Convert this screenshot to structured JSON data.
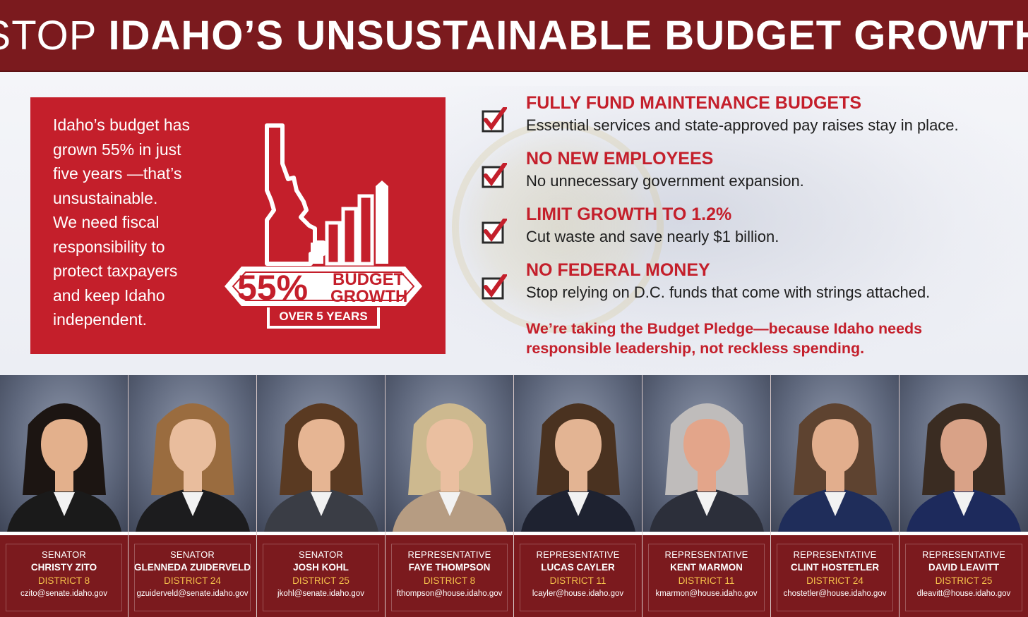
{
  "header": {
    "title_light": "STOP",
    "title_bold": "IDAHO’S UNSUSTAINABLE BUDGET GROWTH"
  },
  "intro": {
    "lines": [
      "Idaho’s budget has",
      "grown 55% in just",
      "five years —that’s",
      "unsustainable.",
      "We need fiscal",
      "responsibility to",
      "protect taxpayers",
      "and keep Idaho",
      "independent."
    ]
  },
  "graphic": {
    "percent": "55%",
    "label_top": "BUDGET",
    "label_bottom": "GROWTH",
    "period": "OVER 5 YEARS"
  },
  "pledges": [
    {
      "title": "FULLY FUND MAINTENANCE BUDGETS",
      "desc": "Essential services and state-approved pay raises stay in place."
    },
    {
      "title": "NO NEW EMPLOYEES",
      "desc": "No unnecessary government expansion."
    },
    {
      "title": "LIMIT GROWTH TO 1.2%",
      "desc": "Cut waste and save nearly $1 billion."
    },
    {
      "title": "NO FEDERAL MONEY",
      "desc": "Stop relying on D.C. funds that come with strings attached."
    }
  ],
  "statement": {
    "line1": "We’re taking the Budget Pledge—because Idaho needs",
    "line2": "responsible leadership, not reckless spending."
  },
  "colors": {
    "brand_red": "#c41f2b",
    "banner_maroon": "#7b1a1e",
    "district_gold": "#f5c04a"
  },
  "legislators": [
    {
      "role": "SENATOR",
      "name": "CHRISTY ZITO",
      "district": "DISTRICT 8",
      "email": "czito@senate.idaho.gov",
      "hair": "#1c1512",
      "skin": "#e3b08c",
      "suit": "#1a1a1a"
    },
    {
      "role": "SENATOR",
      "name": "GLENNEDA ZUIDERVELD",
      "district": "DISTRICT 24",
      "email": "gzuiderveld@senate.idaho.gov",
      "hair": "#9a6c3f",
      "skin": "#e9bd9d",
      "suit": "#1c1c1e"
    },
    {
      "role": "SENATOR",
      "name": "JOSH KOHL",
      "district": "DISTRICT 25",
      "email": "jkohl@senate.idaho.gov",
      "hair": "#5a3a22",
      "skin": "#e6b593",
      "suit": "#3a3d45"
    },
    {
      "role": "REPRESENTATIVE",
      "name": "FAYE THOMPSON",
      "district": "DISTRICT 8",
      "email": "fthompson@house.idaho.gov",
      "hair": "#cdb98f",
      "skin": "#eabfa0",
      "suit": "#b69c82"
    },
    {
      "role": "REPRESENTATIVE",
      "name": "LUCAS CAYLER",
      "district": "DISTRICT 11",
      "email": "lcayler@house.idaho.gov",
      "hair": "#4a3220",
      "skin": "#e3b493",
      "suit": "#1e2230"
    },
    {
      "role": "REPRESENTATIVE",
      "name": "KENT MARMON",
      "district": "DISTRICT 11",
      "email": "kmarmon@house.idaho.gov",
      "hair": "#bfbcbb",
      "skin": "#e3a58a",
      "suit": "#2c2f3a"
    },
    {
      "role": "REPRESENTATIVE",
      "name": "CLINT HOSTETLER",
      "district": "DISTRICT 24",
      "email": "chostetler@house.idaho.gov",
      "hair": "#5e4330",
      "skin": "#e2ae8d",
      "suit": "#1f2d5a"
    },
    {
      "role": "REPRESENTATIVE",
      "name": "DAVID LEAVITT",
      "district": "DISTRICT 25",
      "email": "dleavitt@house.idaho.gov",
      "hair": "#3a2c22",
      "skin": "#d9a287",
      "suit": "#1d2a5c"
    }
  ]
}
